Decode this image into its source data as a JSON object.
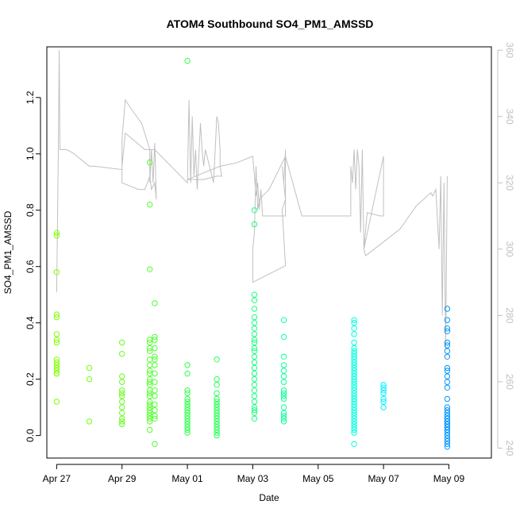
{
  "chart_data": {
    "type": "scatter",
    "title": "ATOM4 Southbound SO4_PM1_AMSSD",
    "xlabel": "Date",
    "ylabel": "SO4_PM1_AMSSD",
    "x_unit": "days since Apr 27",
    "xlim": [
      -0.3,
      13.3
    ],
    "ylim": [
      -0.08,
      1.38
    ],
    "y_ticks": [
      0.0,
      0.2,
      0.4,
      0.6,
      0.8,
      1.0,
      1.2
    ],
    "y_tick_labels": [
      "0.0",
      "0.2",
      "0.4",
      "0.6",
      "0.8",
      "1.0",
      "1.2"
    ],
    "x_ticks": [
      0,
      2,
      4,
      6,
      8,
      10,
      12
    ],
    "x_tick_labels": [
      "Apr 27",
      "Apr 29",
      "May 01",
      "May 03",
      "May 05",
      "May 07",
      "May 09"
    ],
    "y2lim": [
      237,
      361
    ],
    "y2_ticks": [
      240,
      260,
      280,
      300,
      320,
      340,
      360
    ],
    "y2_tick_labels": [
      "240",
      "260",
      "280",
      "300",
      "320",
      "340",
      "360"
    ],
    "y2_color": "#c0c0c0",
    "point_style": "open-circle",
    "point_groups": [
      {
        "x": 0.0,
        "color": "#80ff00",
        "y": [
          0.72,
          0.71,
          0.58,
          0.43,
          0.42,
          0.36,
          0.34,
          0.33,
          0.27,
          0.26,
          0.25,
          0.24,
          0.23,
          0.22,
          0.22,
          0.12
        ]
      },
      {
        "x": 1.0,
        "color": "#73ff0d",
        "y": [
          0.24,
          0.2,
          0.05
        ]
      },
      {
        "x": 2.0,
        "color": "#66ff1a",
        "y": [
          0.33,
          0.29,
          0.21,
          0.19,
          0.16,
          0.15,
          0.14,
          0.12,
          0.1,
          0.08,
          0.06,
          0.05,
          0.04
        ]
      },
      {
        "x": 2.85,
        "color": "#55ff2a",
        "y": [
          0.97,
          0.82,
          0.59,
          0.34,
          0.33,
          0.31,
          0.3,
          0.27,
          0.25,
          0.23,
          0.22,
          0.2,
          0.19,
          0.18,
          0.16,
          0.15,
          0.14,
          0.12,
          0.11,
          0.1,
          0.09,
          0.08,
          0.07,
          0.06,
          0.05,
          0.02
        ]
      },
      {
        "x": 3.0,
        "color": "#4dff33",
        "y": [
          0.47,
          0.35,
          0.34,
          0.31,
          0.28,
          0.27,
          0.25,
          0.22,
          0.19,
          0.16,
          0.14,
          0.11,
          0.09,
          0.07,
          0.06,
          -0.03
        ]
      },
      {
        "x": 4.0,
        "color": "#33ff4d",
        "y": [
          1.33,
          0.25,
          0.22,
          0.16,
          0.15,
          0.13,
          0.12,
          0.11,
          0.1,
          0.09,
          0.08,
          0.07,
          0.06,
          0.05,
          0.04,
          0.03,
          0.02,
          0.01
        ]
      },
      {
        "x": 4.9,
        "color": "#29ff57",
        "y": [
          0.27,
          0.2,
          0.18,
          0.15,
          0.13,
          0.12,
          0.11,
          0.1,
          0.09,
          0.08,
          0.07,
          0.06,
          0.05,
          0.04,
          0.03,
          0.02,
          0.01,
          0.0
        ]
      },
      {
        "x": 6.05,
        "color": "#1aff80",
        "y": [
          0.8,
          0.75,
          0.5,
          0.48,
          0.45,
          0.42,
          0.4,
          0.38,
          0.36,
          0.34,
          0.33,
          0.31,
          0.3,
          0.28,
          0.26,
          0.24,
          0.22,
          0.2,
          0.18,
          0.16,
          0.14,
          0.12,
          0.1,
          0.09,
          0.08,
          0.06
        ]
      },
      {
        "x": 6.95,
        "color": "#0dff99",
        "y": [
          0.41,
          0.35,
          0.28,
          0.25,
          0.23,
          0.21,
          0.19,
          0.16,
          0.15,
          0.14,
          0.13,
          0.1,
          0.08,
          0.07,
          0.06,
          0.05
        ]
      },
      {
        "x": 9.1,
        "color": "#00ffe0",
        "y": [
          0.41,
          0.4,
          0.38,
          0.36,
          0.33,
          0.31,
          0.3,
          0.29,
          0.28,
          0.27,
          0.26,
          0.25,
          0.24,
          0.23,
          0.22,
          0.21,
          0.2,
          0.19,
          0.18,
          0.17,
          0.16,
          0.15,
          0.14,
          0.13,
          0.12,
          0.11,
          0.1,
          0.09,
          0.08,
          0.07,
          0.06,
          0.05,
          0.04,
          0.03,
          0.02,
          0.01,
          -0.03
        ]
      },
      {
        "x": 10.0,
        "color": "#00f0ff",
        "y": [
          0.18,
          0.17,
          0.16,
          0.15,
          0.13,
          0.12,
          0.1
        ]
      },
      {
        "x": 11.95,
        "color": "#0096ff",
        "y": [
          0.45,
          0.41,
          0.38,
          0.37,
          0.33,
          0.32,
          0.3,
          0.28,
          0.24,
          0.23,
          0.21,
          0.19,
          0.17,
          0.13,
          0.1,
          0.09,
          0.08,
          0.07,
          0.06,
          0.06,
          0.05,
          0.05,
          0.04,
          0.04,
          0.03,
          0.03,
          0.02,
          0.02,
          0.01,
          0.0,
          -0.01,
          -0.02,
          -0.03,
          -0.04
        ]
      }
    ],
    "altitude_series": {
      "color": "#c0c0c0",
      "points": [
        [
          0.0,
          287
        ],
        [
          0.05,
          328
        ],
        [
          0.08,
          360
        ],
        [
          0.1,
          330
        ],
        [
          0.3,
          330
        ],
        [
          0.5,
          329
        ],
        [
          1.0,
          325
        ],
        [
          1.1,
          325
        ],
        [
          1.15,
          325
        ],
        [
          2.0,
          324
        ],
        [
          2.0,
          333
        ],
        [
          2.1,
          345
        ],
        [
          2.3,
          342
        ],
        [
          2.6,
          338
        ],
        [
          2.85,
          330
        ],
        [
          2.85,
          320
        ],
        [
          2.9,
          330
        ],
        [
          2.95,
          320
        ],
        [
          3.0,
          332
        ],
        [
          3.05,
          315
        ],
        [
          3.0,
          320
        ],
        [
          2.9,
          318
        ],
        [
          2.85,
          322
        ],
        [
          2.7,
          318
        ],
        [
          2.5,
          318
        ],
        [
          2.0,
          320
        ],
        [
          2.0,
          325
        ],
        [
          2.05,
          330
        ],
        [
          2.1,
          335
        ],
        [
          2.7,
          330
        ],
        [
          3.0,
          330
        ],
        [
          4.0,
          320
        ],
        [
          4.05,
          345
        ],
        [
          4.1,
          320
        ],
        [
          4.15,
          340
        ],
        [
          4.2,
          322
        ],
        [
          4.25,
          330
        ],
        [
          4.3,
          318
        ],
        [
          4.35,
          328
        ],
        [
          4.4,
          338
        ],
        [
          4.45,
          330
        ],
        [
          4.5,
          325
        ],
        [
          4.55,
          330
        ],
        [
          4.6,
          328
        ],
        [
          4.8,
          320
        ],
        [
          4.85,
          330
        ],
        [
          4.9,
          340
        ],
        [
          4.95,
          338
        ],
        [
          5.0,
          330
        ],
        [
          5.0,
          325
        ],
        [
          5.05,
          322
        ],
        [
          4.9,
          322
        ],
        [
          4.5,
          321
        ],
        [
          4.0,
          321
        ],
        [
          4.5,
          323
        ],
        [
          5.0,
          325
        ],
        [
          5.5,
          326
        ],
        [
          6.0,
          328
        ],
        [
          6.05,
          322
        ],
        [
          6.1,
          316
        ],
        [
          6.15,
          320
        ],
        [
          6.2,
          312
        ],
        [
          6.25,
          318
        ],
        [
          6.3,
          310
        ],
        [
          6.5,
          310
        ],
        [
          7.0,
          310
        ],
        [
          7.0,
          330
        ],
        [
          6.95,
          320
        ],
        [
          6.9,
          325
        ],
        [
          6.95,
          320
        ],
        [
          7.0,
          315
        ],
        [
          6.9,
          312
        ],
        [
          7.0,
          295
        ],
        [
          6.0,
          290
        ],
        [
          6.0,
          300
        ],
        [
          6.05,
          305
        ],
        [
          6.1,
          325
        ],
        [
          6.15,
          312
        ],
        [
          6.2,
          315
        ],
        [
          6.5,
          318
        ],
        [
          7.0,
          328
        ],
        [
          7.5,
          310
        ],
        [
          8.0,
          310
        ],
        [
          8.5,
          310
        ],
        [
          9.0,
          310
        ],
        [
          9.0,
          325
        ],
        [
          9.05,
          320
        ],
        [
          9.1,
          330
        ],
        [
          9.15,
          318
        ],
        [
          9.2,
          330
        ],
        [
          9.25,
          325
        ],
        [
          9.3,
          305
        ],
        [
          9.35,
          330
        ],
        [
          9.4,
          300
        ],
        [
          10.0,
          328
        ],
        [
          10.0,
          312
        ],
        [
          10.0,
          310
        ],
        [
          9.9,
          310
        ],
        [
          9.5,
          311
        ],
        [
          9.4,
          300
        ],
        [
          9.45,
          298
        ],
        [
          10.5,
          306
        ],
        [
          11.0,
          313
        ],
        [
          11.45,
          317
        ],
        [
          11.5,
          316
        ],
        [
          11.6,
          318
        ],
        [
          11.7,
          300
        ],
        [
          11.75,
          322
        ],
        [
          11.8,
          280
        ],
        [
          11.85,
          320
        ],
        [
          11.9,
          270
        ],
        [
          11.95,
          322
        ]
      ]
    }
  }
}
